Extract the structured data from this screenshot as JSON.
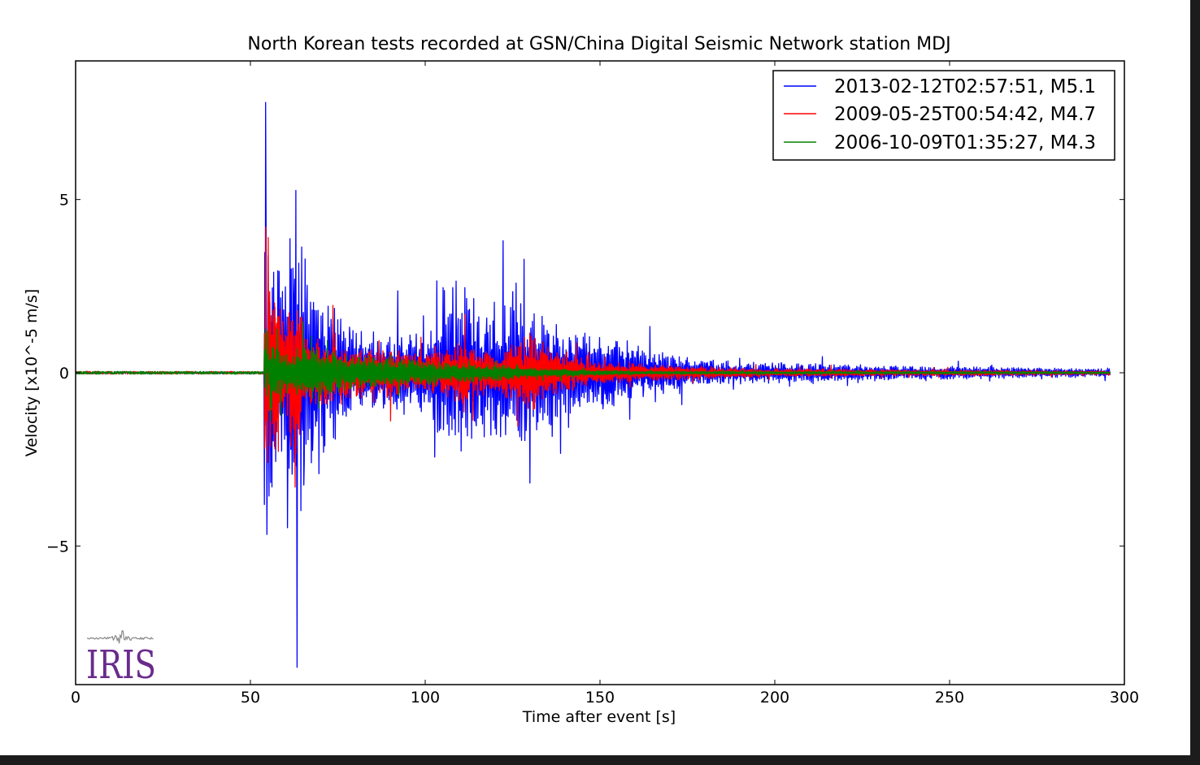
{
  "chart_data": {
    "type": "line",
    "title": "North Korean tests recorded at GSN/China Digital Seismic Network station MDJ",
    "xlabel": "Time after event [s]",
    "ylabel": "Velocity [x10^-5 m/s]",
    "xlim": [
      0,
      300
    ],
    "ylim": [
      -9,
      9
    ],
    "xticks": [
      0,
      50,
      100,
      150,
      200,
      250,
      300
    ],
    "yticks": [
      -5,
      0,
      5
    ],
    "ytick_labels": [
      "−5",
      "0",
      "5"
    ],
    "grid": false,
    "legend_position": "top-right",
    "series": [
      {
        "name": "2013-02-12T02:57:51, M5.1",
        "color": "#0000ff",
        "onset_s": 54,
        "peak_positive": 7.8,
        "peak_negative": -8.5,
        "envelope": [
          {
            "t": 0,
            "amp": 0.03
          },
          {
            "t": 53.9,
            "amp": 0.03
          },
          {
            "t": 54,
            "amp": 5.5
          },
          {
            "t": 56,
            "amp": 4.0
          },
          {
            "t": 60,
            "amp": 2.5
          },
          {
            "t": 63,
            "amp": 6.0
          },
          {
            "t": 66,
            "amp": 3.0
          },
          {
            "t": 80,
            "amp": 1.3
          },
          {
            "t": 100,
            "amp": 1.2
          },
          {
            "t": 110,
            "amp": 2.7
          },
          {
            "t": 115,
            "amp": 2.0
          },
          {
            "t": 130,
            "amp": 2.2
          },
          {
            "t": 140,
            "amp": 1.3
          },
          {
            "t": 150,
            "amp": 1.2
          },
          {
            "t": 160,
            "amp": 0.9
          },
          {
            "t": 175,
            "amp": 0.4
          },
          {
            "t": 200,
            "amp": 0.3
          },
          {
            "t": 250,
            "amp": 0.2
          },
          {
            "t": 296,
            "amp": 0.12
          }
        ]
      },
      {
        "name": "2009-05-25T00:54:42, M4.7",
        "color": "#ff0000",
        "onset_s": 54,
        "peak_positive": 4.2,
        "peak_negative": -3.3,
        "envelope": [
          {
            "t": 0,
            "amp": 0.04
          },
          {
            "t": 53.9,
            "amp": 0.04
          },
          {
            "t": 54,
            "amp": 3.6
          },
          {
            "t": 57,
            "amp": 2.5
          },
          {
            "t": 60,
            "amp": 1.5
          },
          {
            "t": 63,
            "amp": 2.8
          },
          {
            "t": 66,
            "amp": 1.2
          },
          {
            "t": 80,
            "amp": 0.8
          },
          {
            "t": 100,
            "amp": 0.6
          },
          {
            "t": 110,
            "amp": 0.9
          },
          {
            "t": 120,
            "amp": 0.6
          },
          {
            "t": 130,
            "amp": 1.2
          },
          {
            "t": 140,
            "amp": 0.6
          },
          {
            "t": 150,
            "amp": 0.3
          },
          {
            "t": 200,
            "amp": 0.12
          },
          {
            "t": 296,
            "amp": 0.06
          }
        ]
      },
      {
        "name": "2006-10-09T01:35:27, M4.3",
        "color": "#008000",
        "onset_s": 54,
        "peak_positive": 1.2,
        "peak_negative": -1.0,
        "envelope": [
          {
            "t": 0,
            "amp": 0.04
          },
          {
            "t": 53.9,
            "amp": 0.04
          },
          {
            "t": 54,
            "amp": 1.1
          },
          {
            "t": 60,
            "amp": 0.6
          },
          {
            "t": 65,
            "amp": 0.8
          },
          {
            "t": 80,
            "amp": 0.5
          },
          {
            "t": 100,
            "amp": 0.35
          },
          {
            "t": 120,
            "amp": 0.25
          },
          {
            "t": 130,
            "amp": 0.15
          },
          {
            "t": 160,
            "amp": 0.05
          },
          {
            "t": 296,
            "amp": 0.03
          }
        ]
      }
    ]
  },
  "logo": {
    "text": "IRIS",
    "color": "#6a2b8c"
  }
}
